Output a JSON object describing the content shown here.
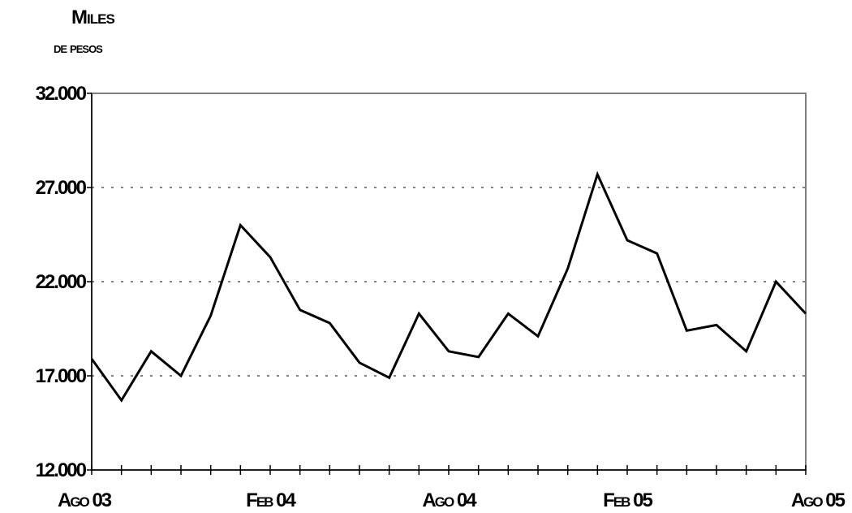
{
  "unit_label": {
    "line1": "Miles",
    "line2": "de pesos"
  },
  "chart_data": {
    "type": "line",
    "title": "",
    "xlabel": "",
    "ylabel": "Miles de pesos",
    "ylim": [
      12000,
      32000
    ],
    "y_ticks": [
      12000,
      17000,
      22000,
      27000,
      32000
    ],
    "y_tick_labels": [
      "12.000",
      "17.000",
      "22.000",
      "27.000",
      "32.000"
    ],
    "grid": "horizontal dotted",
    "x_tick_labels": [
      {
        "index": 0,
        "label": "Ago 03"
      },
      {
        "index": 6,
        "label": "Feb 04"
      },
      {
        "index": 12,
        "label": "Ago 04"
      },
      {
        "index": 18,
        "label": "Feb 05"
      },
      {
        "index": 24,
        "label": "Ago 05"
      }
    ],
    "x": [
      "Ago 03",
      "Sep 03",
      "Oct 03",
      "Nov 03",
      "Dic 03",
      "Ene 04",
      "Feb 04",
      "Mar 04",
      "Abr 04",
      "May 04",
      "Jun 04",
      "Jul 04",
      "Ago 04",
      "Sep 04",
      "Oct 04",
      "Nov 04",
      "Dic 04",
      "Ene 05",
      "Feb 05",
      "Mar 05",
      "Abr 05",
      "May 05",
      "Jun 05",
      "Jul 05",
      "Ago 05"
    ],
    "series": [
      {
        "color": "#000000",
        "values": [
          17900,
          15700,
          18300,
          17000,
          20200,
          25000,
          23300,
          20500,
          19800,
          17700,
          16900,
          20300,
          18300,
          18000,
          20300,
          19100,
          22700,
          27700,
          24200,
          23500,
          19400,
          19700,
          18300,
          22000,
          20300
        ]
      }
    ]
  }
}
